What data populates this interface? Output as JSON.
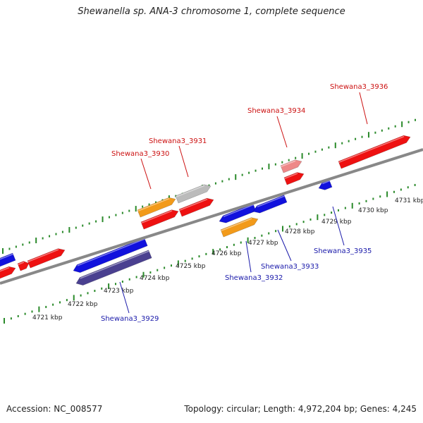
{
  "title": "Shewanella sp. ANA-3 chromosome 1, complete sequence",
  "footer": {
    "accession": "Accession: NC_008577",
    "summary": "Topology: circular; Length: 4,972,204 bp; Genes: 4,245"
  },
  "colors": {
    "forward_gene": "#ee1111",
    "reverse_gene": "#1111dd",
    "highlight_gene": "#f29a1a",
    "pseudo_gene": "#bbbbbb",
    "dark_gene": "#4a4090",
    "pale_gene": "#ee8888",
    "axis": "#888888",
    "ticks": "#2a8a2a",
    "label_top": "#cc1111",
    "label_bottom": "#1a1aaa"
  },
  "kbp_labels": [
    "4721 kbp",
    "4722 kbp",
    "4723 kbp",
    "4724 kbp",
    "4725 kbp",
    "4726 kbp",
    "4727 kbp",
    "4728 kbp",
    "4729 kbp",
    "4730 kbp",
    "4731 kbp"
  ],
  "gene_labels": {
    "g3929": "Shewana3_3929",
    "g3930": "Shewana3_3930",
    "g3931": "Shewana3_3931",
    "g3932": "Shewana3_3932",
    "g3933": "Shewana3_3933",
    "g3934": "Shewana3_3934",
    "g3935": "Shewana3_3935",
    "g3936": "Shewana3_3936"
  }
}
